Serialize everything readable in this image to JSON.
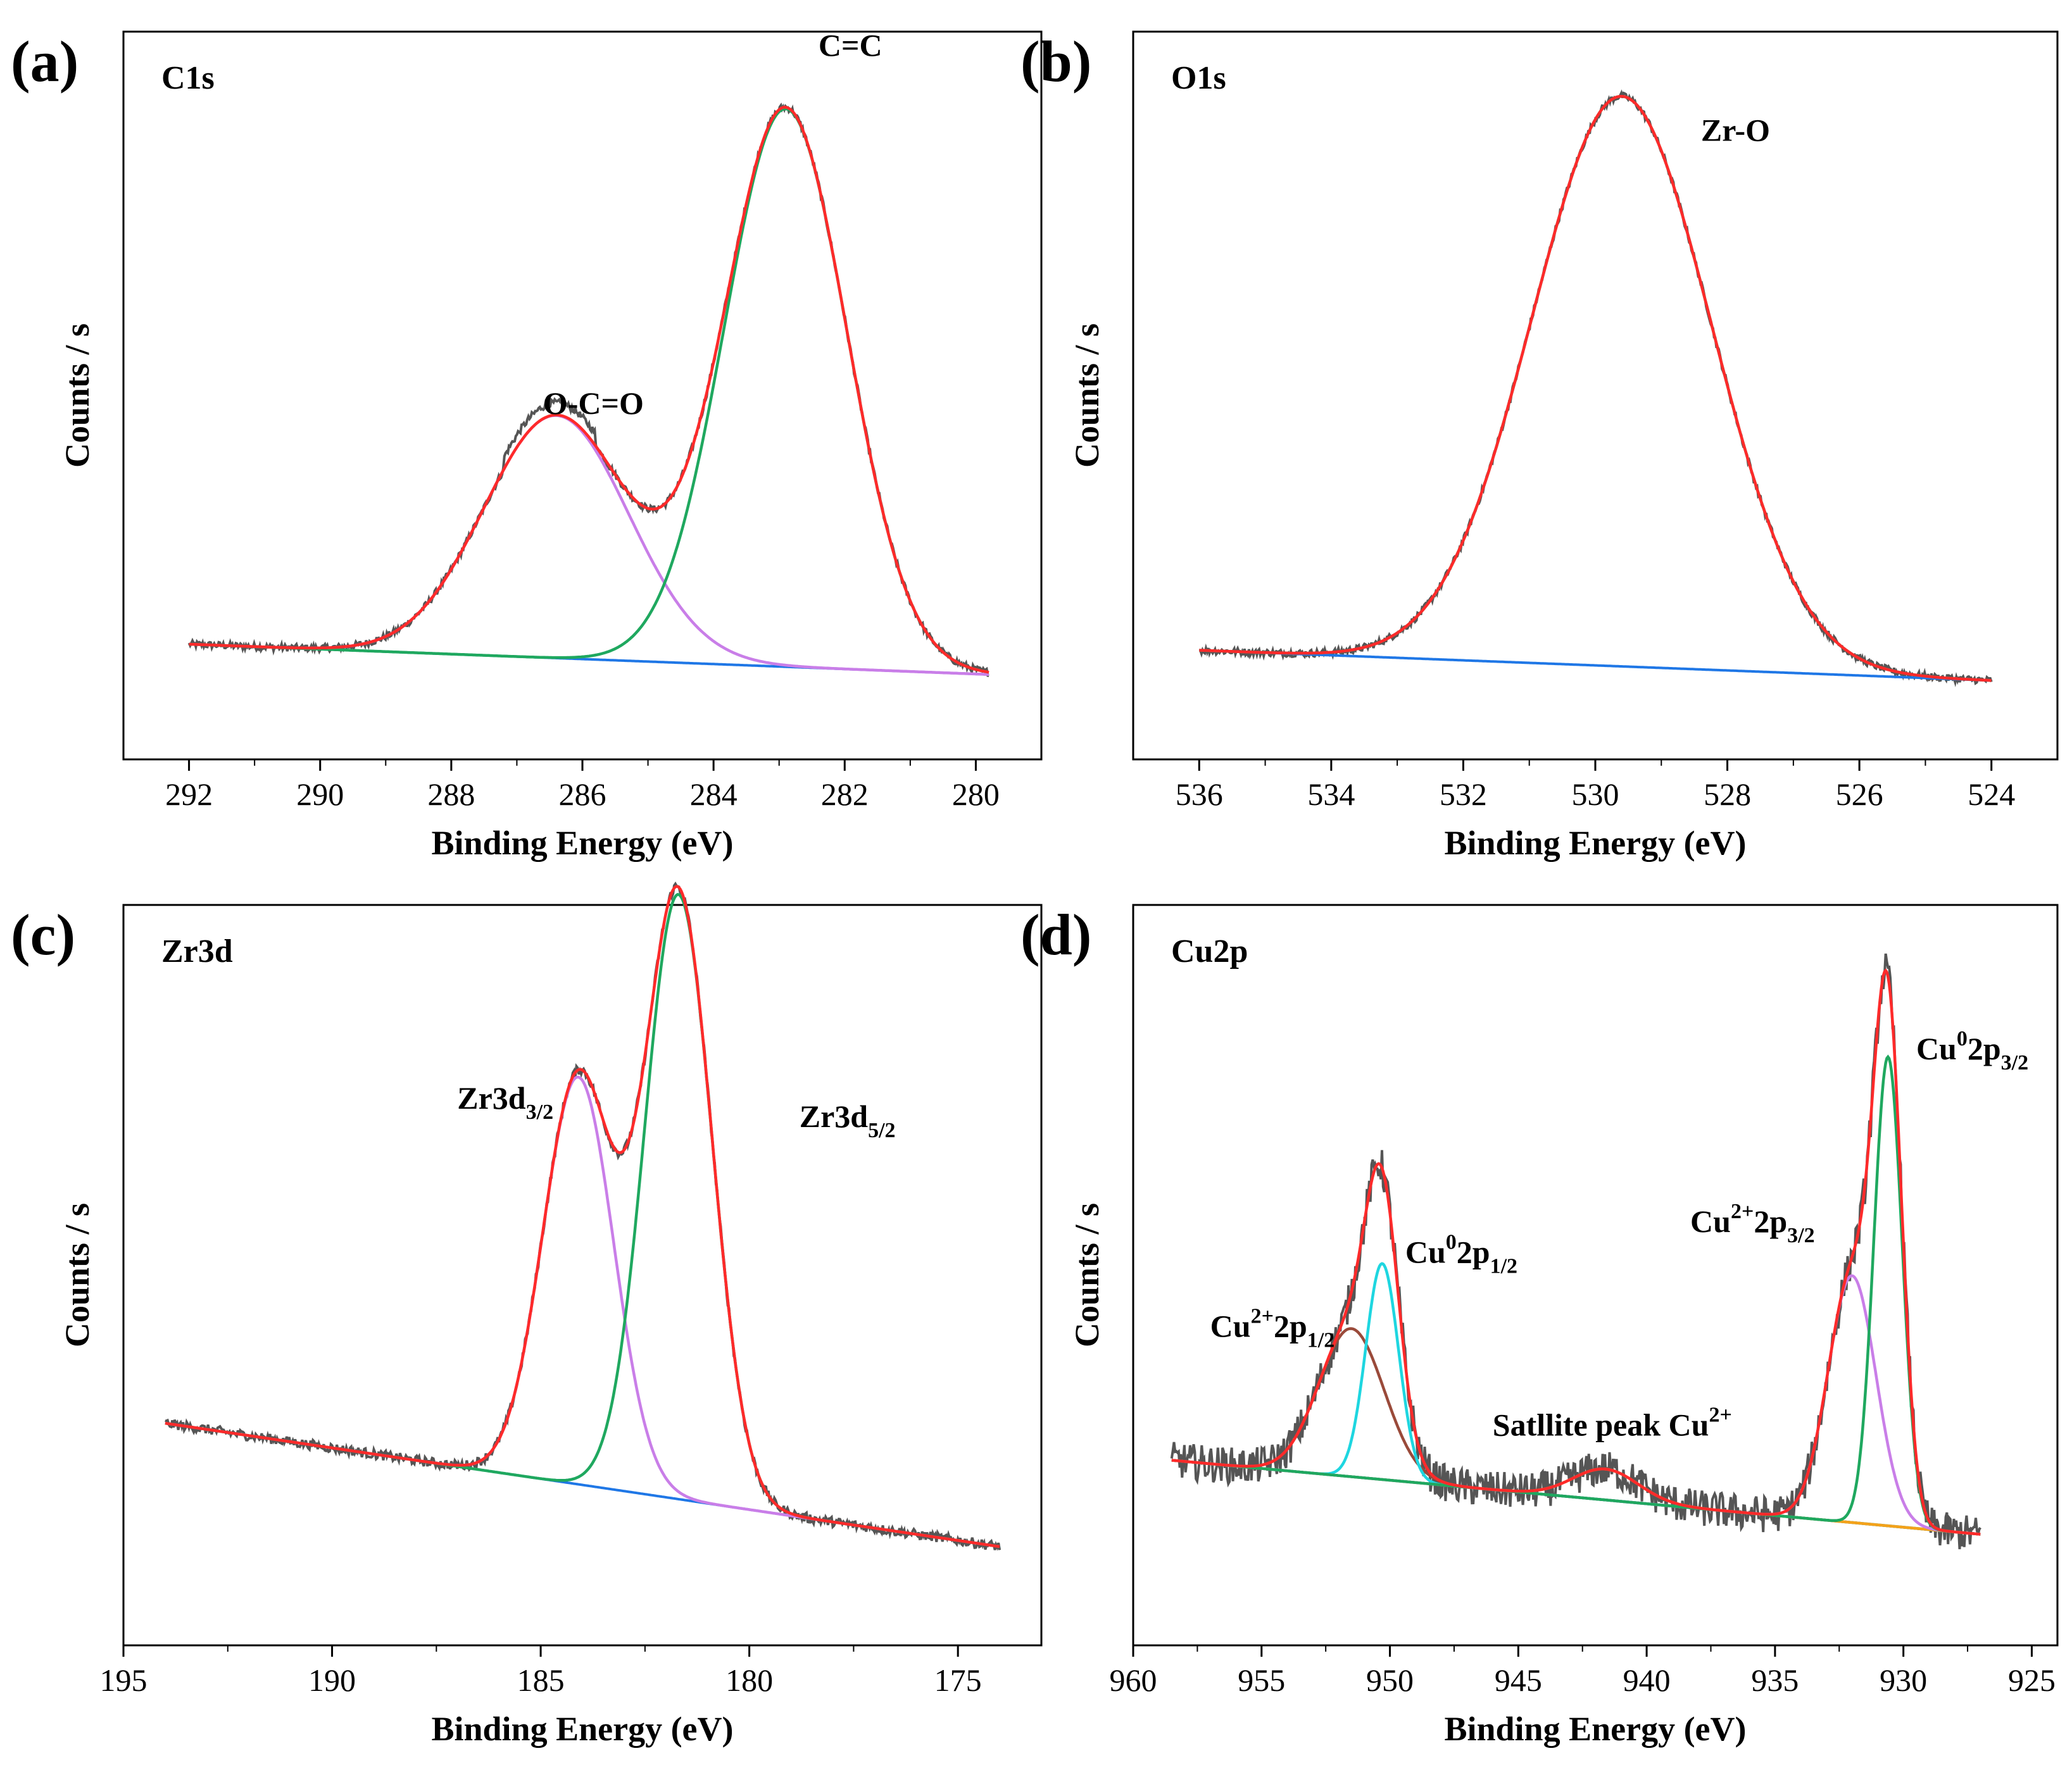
{
  "figure": {
    "colors": {
      "raw": "#555555",
      "envelope": "#ff2a2a",
      "peak_green": "#1fa85f",
      "peak_purple": "#c97ee8",
      "peak_cyan": "#1ed6e0",
      "peak_brown": "#9a4a3a",
      "peak_orange": "#f4a21a",
      "background_blue": "#1f77e6",
      "background_brown": "#a0522d"
    }
  },
  "chart_data": [
    {
      "panel": "(a)",
      "element": "C1s",
      "type": "line",
      "xlabel": "Binding Energy (eV)",
      "ylabel": "Counts / s",
      "xlim": [
        293,
        279
      ],
      "ylim": [
        0,
        1.2
      ],
      "x_ticks": [
        292,
        290,
        288,
        286,
        284,
        282,
        280
      ],
      "background": {
        "from": [
          292.0,
          0.19
        ],
        "to": [
          279.8,
          0.14
        ]
      },
      "peaks": [
        {
          "name": "O-C=O",
          "center": 286.4,
          "height": 0.4,
          "fwhm": 2.6,
          "color_key": "peak_purple"
        },
        {
          "name": "C=C",
          "center": 282.9,
          "height": 0.92,
          "fwhm": 2.2,
          "color_key": "peak_green"
        }
      ],
      "annotations": [
        {
          "text": "O-C=O",
          "x": 286.6,
          "y": 0.57
        },
        {
          "text": "C=C",
          "x": 282.4,
          "y": 1.16
        }
      ]
    },
    {
      "panel": "(b)",
      "element": "O1s",
      "type": "line",
      "xlabel": "Binding Energy (eV)",
      "ylabel": "Counts / s",
      "xlim": [
        537,
        523
      ],
      "ylim": [
        0,
        1.2
      ],
      "x_ticks": [
        536,
        534,
        532,
        530,
        528,
        526,
        524
      ],
      "background": {
        "from": [
          536.0,
          0.18
        ],
        "to": [
          524.0,
          0.13
        ]
      },
      "peaks": [
        {
          "name": "Zr-O",
          "center": 529.6,
          "height": 0.94,
          "fwhm": 3.2,
          "color_key": "peak_green"
        }
      ],
      "annotations": [
        {
          "text": "Zr-O",
          "x": 528.4,
          "y": 1.02
        }
      ]
    },
    {
      "panel": "(c)",
      "element": "Zr3d",
      "type": "line",
      "xlabel": "Binding Energy (eV)",
      "ylabel": "Counts / s",
      "xlim": [
        195,
        173
      ],
      "ylim": [
        0,
        1.2
      ],
      "x_ticks": [
        195,
        190,
        185,
        180,
        175
      ],
      "background": {
        "from": [
          194.0,
          0.36
        ],
        "to": [
          174.0,
          0.16
        ]
      },
      "peaks": [
        {
          "name": "Zr3d 3/2",
          "center": 184.1,
          "height": 0.66,
          "fwhm": 2.0,
          "color_key": "peak_purple"
        },
        {
          "name": "Zr3d 5/2",
          "center": 181.7,
          "height": 0.98,
          "fwhm": 1.9,
          "color_key": "peak_green"
        }
      ],
      "annotations": [
        {
          "text": "Zr3d",
          "sub": "3/2",
          "x": 187.0,
          "y": 0.87
        },
        {
          "text": "Zr3d",
          "sub": "5/2",
          "x": 178.8,
          "y": 0.84
        }
      ]
    },
    {
      "panel": "(d)",
      "element": "Cu2p",
      "type": "line",
      "xlabel": "Binding Energy (eV)",
      "ylabel": "Counts / s",
      "xlim": [
        960,
        924
      ],
      "ylim": [
        0,
        1.2
      ],
      "x_ticks": [
        960,
        955,
        950,
        945,
        940,
        935,
        930,
        925
      ],
      "background": {
        "from": [
          958.5,
          0.3
        ],
        "to": [
          927.0,
          0.18
        ]
      },
      "peaks": [
        {
          "name": "Cu2+ 2p1/2",
          "center": 951.5,
          "height": 0.24,
          "fwhm": 3.0,
          "color_key": "peak_brown"
        },
        {
          "name": "Cu0 2p1/2",
          "center": 950.3,
          "height": 0.35,
          "fwhm": 1.5,
          "color_key": "peak_cyan"
        },
        {
          "name": "Satllite peak Cu2+",
          "center": 941.6,
          "height": 0.05,
          "fwhm": 3.0,
          "color_key": "peak_orange"
        },
        {
          "name": "Cu2+ 2p3/2",
          "center": 932.0,
          "height": 0.4,
          "fwhm": 2.2,
          "color_key": "peak_purple"
        },
        {
          "name": "Cu0 2p3/2",
          "center": 930.6,
          "height": 0.76,
          "fwhm": 1.3,
          "color_key": "peak_green"
        }
      ],
      "annotations": [
        {
          "text": "Cu",
          "sup": "2+",
          "rest": "2p",
          "sub": "1/2",
          "x": 957.0,
          "y": 0.5
        },
        {
          "text": "Cu",
          "sup": "0",
          "rest": "2p",
          "sub": "1/2",
          "x": 949.4,
          "y": 0.62
        },
        {
          "text": "Satllite peak Cu",
          "sup": "2+",
          "x": 946.0,
          "y": 0.34
        },
        {
          "text": "Cu",
          "sup": "2+",
          "rest": "2p",
          "sub": "3/2",
          "x": 938.3,
          "y": 0.67
        },
        {
          "text": "Cu",
          "sup": "0",
          "rest": "2p",
          "sub": "3/2",
          "x": 929.5,
          "y": 0.95
        }
      ]
    }
  ]
}
